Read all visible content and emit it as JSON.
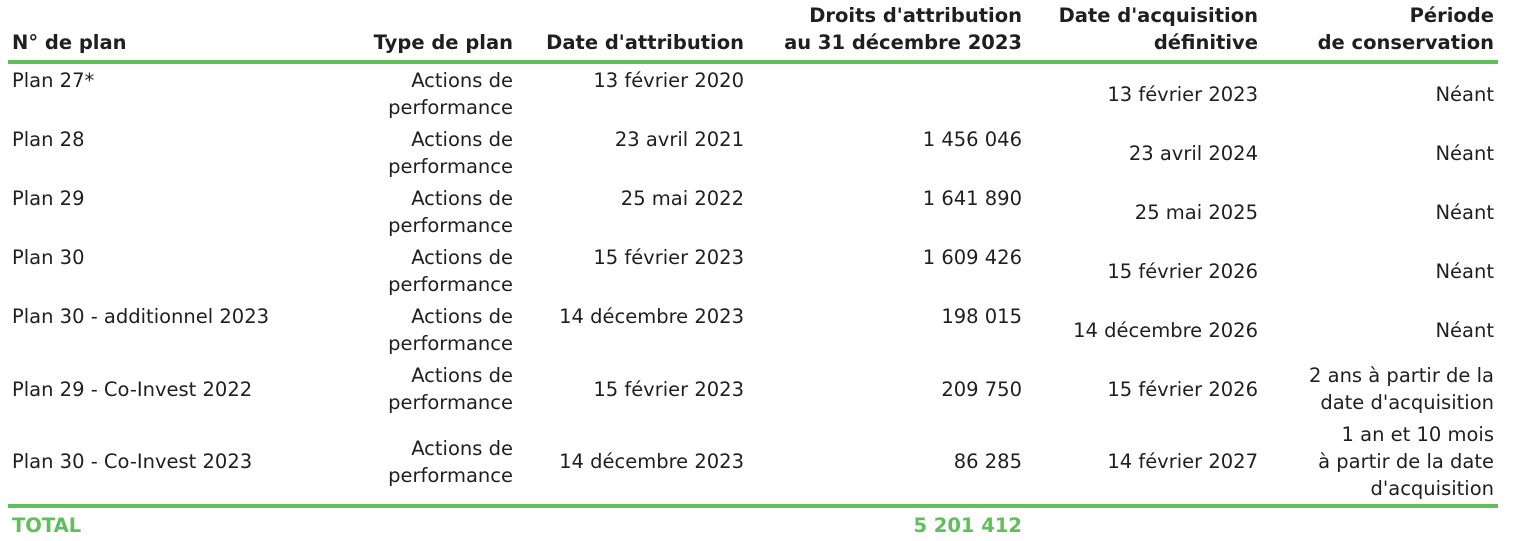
{
  "headers": {
    "plan_no": "N° de plan",
    "plan_type": "Type de plan",
    "grant_date": "Date d'attribution",
    "grant_rights_l1": "Droits d'attribution",
    "grant_rights_l2": "au 31 décembre 2023",
    "vesting_l1": "Date d'acquisition",
    "vesting_l2": "définitive",
    "holding_l1": "Période",
    "holding_l2": "de conservation"
  },
  "rows": [
    {
      "plan": "Plan 27*",
      "type_l1": "Actions de",
      "type_l2": "performance",
      "grant_date": "13 février 2020",
      "rights": "",
      "vesting": "13 février 2023",
      "holding_l1": "Néant",
      "holding_l2": "",
      "holding_l3": ""
    },
    {
      "plan": "Plan 28",
      "type_l1": "Actions de",
      "type_l2": "performance",
      "grant_date": "23 avril 2021",
      "rights": "1 456 046",
      "vesting": "23 avril 2024",
      "holding_l1": "Néant",
      "holding_l2": "",
      "holding_l3": ""
    },
    {
      "plan": "Plan 29",
      "type_l1": "Actions de",
      "type_l2": "performance",
      "grant_date": "25 mai 2022",
      "rights": "1 641 890",
      "vesting": "25 mai 2025",
      "holding_l1": "Néant",
      "holding_l2": "",
      "holding_l3": ""
    },
    {
      "plan": "Plan 30",
      "type_l1": "Actions de",
      "type_l2": "performance",
      "grant_date": "15 février 2023",
      "rights": "1 609 426",
      "vesting": "15 février 2026",
      "holding_l1": "Néant",
      "holding_l2": "",
      "holding_l3": ""
    },
    {
      "plan": "Plan 30 - additionnel 2023",
      "type_l1": "Actions de",
      "type_l2": "performance",
      "grant_date": "14 décembre 2023",
      "rights": "198 015",
      "vesting": "14 décembre 2026",
      "holding_l1": "Néant",
      "holding_l2": "",
      "holding_l3": ""
    },
    {
      "plan": "Plan 29 - Co-Invest 2022",
      "type_l1": "Actions de",
      "type_l2": "performance",
      "grant_date": "15 février 2023",
      "rights": "209 750",
      "vesting": "15 février 2026",
      "holding_l1": "2 ans à partir de la",
      "holding_l2": "date d'acquisition",
      "holding_l3": ""
    },
    {
      "plan": "Plan 30 - Co-Invest 2023",
      "type_l1": "Actions de",
      "type_l2": "performance",
      "grant_date": "14 décembre 2023",
      "rights": "86 285",
      "vesting": "14 février 2027",
      "holding_l1": "1 an et 10 mois",
      "holding_l2": "à partir de la date",
      "holding_l3": "d'acquisition"
    }
  ],
  "total": {
    "label": "TOTAL",
    "value": "5 201 412"
  },
  "colors": {
    "accent": "#5fbf5a",
    "text": "#1f1f1f"
  }
}
